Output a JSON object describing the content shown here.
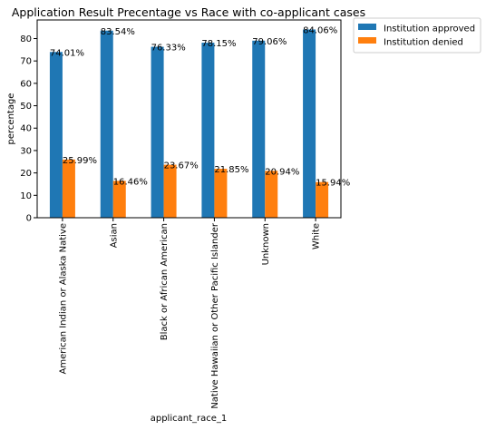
{
  "chart_data": {
    "type": "bar",
    "title": "Application Result Precentage vs Race with co-applicant cases",
    "xlabel": "applicant_race_1",
    "ylabel": "percentage",
    "categories": [
      "American Indian or Alaska Native",
      "Asian",
      "Black or African American",
      "Native Hawaiian or Other Pacific Islander",
      "Unknown",
      "White"
    ],
    "series": [
      {
        "name": "Institution approved",
        "color": "#1f77b4",
        "values": [
          74.01,
          83.54,
          76.33,
          78.15,
          79.06,
          84.06
        ],
        "labels": [
          "74.01%",
          "83.54%",
          "76.33%",
          "78.15%",
          "79.06%",
          "84.06%"
        ]
      },
      {
        "name": "Institution denied",
        "color": "#ff7f0e",
        "values": [
          25.99,
          16.46,
          23.67,
          21.85,
          20.94,
          15.94
        ],
        "labels": [
          "25.99%",
          "16.46%",
          "23.67%",
          "21.85%",
          "20.94%",
          "15.94%"
        ]
      }
    ],
    "ylim": [
      0,
      88.3
    ],
    "yticks": [
      0,
      10,
      20,
      30,
      40,
      50,
      60,
      70,
      80
    ],
    "grid": false,
    "legend_position": "outside-top-right"
  }
}
